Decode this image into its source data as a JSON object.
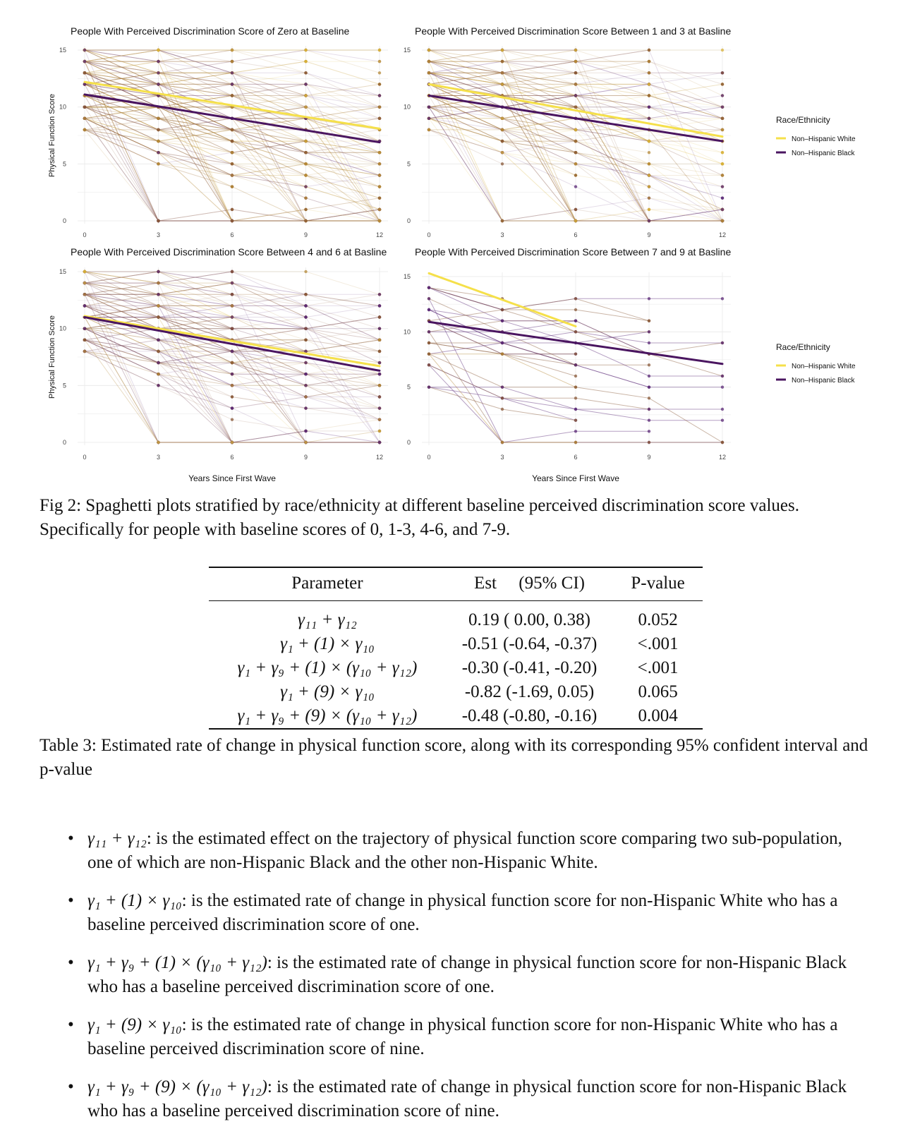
{
  "figure": {
    "legend_title": "Race/Ethnicity",
    "legend_items": [
      {
        "label": "Non–Hispanic White",
        "color": "#f5e04a"
      },
      {
        "label": "Non–Hispanic Black",
        "color": "#4a1560"
      }
    ],
    "ylabel": "Physical Function Score",
    "xlabel": "Years Since First Wave",
    "yticks": [
      "0",
      "5",
      "10",
      "15"
    ],
    "xticks": [
      "0",
      "3",
      "6",
      "9",
      "12"
    ]
  },
  "chart_data": [
    {
      "type": "line",
      "title": "People With Perceived Discrimination Score of Zero at Baseline",
      "xlabel": "",
      "ylabel": "Physical Function Score",
      "x": [
        0,
        3,
        6,
        9,
        12
      ],
      "xlim": [
        0,
        12
      ],
      "ylim": [
        0,
        15
      ],
      "series": [
        {
          "name": "Non–Hispanic White",
          "x": [
            0,
            12
          ],
          "values": [
            12.2,
            8.1
          ]
        },
        {
          "name": "Non–Hispanic Black",
          "x": [
            0,
            12
          ],
          "values": [
            11.1,
            6.9
          ]
        }
      ]
    },
    {
      "type": "line",
      "title": "People With Perceived Discrimination Score Between 1 and 3 at Basline",
      "xlabel": "",
      "ylabel": "",
      "x": [
        0,
        3,
        6,
        9,
        12
      ],
      "xlim": [
        0,
        12
      ],
      "ylim": [
        0,
        15
      ],
      "series": [
        {
          "name": "Non–Hispanic White",
          "x": [
            0,
            12
          ],
          "values": [
            12.0,
            7.4
          ]
        },
        {
          "name": "Non–Hispanic Black",
          "x": [
            0,
            12
          ],
          "values": [
            11.0,
            7.0
          ]
        }
      ]
    },
    {
      "type": "line",
      "title": "People With Perceived Discrimination Score Between 4 and 6 at Basline",
      "xlabel": "Years Since First Wave",
      "ylabel": "Physical Function Score",
      "x": [
        0,
        3,
        6,
        9,
        12
      ],
      "xlim": [
        0,
        12
      ],
      "ylim": [
        0,
        15
      ],
      "series": [
        {
          "name": "Non–Hispanic White",
          "x": [
            0,
            12
          ],
          "values": [
            11.1,
            6.7
          ]
        },
        {
          "name": "Non–Hispanic Black",
          "x": [
            0,
            12
          ],
          "values": [
            11.0,
            6.3
          ]
        }
      ]
    },
    {
      "type": "line",
      "title": "People With Perceived Discrimination Score Between 7 and 9 at Basline",
      "xlabel": "Years Since First Wave",
      "ylabel": "",
      "x": [
        0,
        3,
        6,
        9,
        12
      ],
      "xlim": [
        0,
        12
      ],
      "ylim": [
        0,
        15
      ],
      "series": [
        {
          "name": "Non–Hispanic White",
          "x": [
            0,
            6
          ],
          "values": [
            15.3,
            10.5
          ]
        },
        {
          "name": "Non–Hispanic Black",
          "x": [
            0,
            12
          ],
          "values": [
            10.9,
            7.1
          ]
        }
      ]
    }
  ],
  "fig_caption": "Fig 2: Spaghetti plots stratified by race/ethnicity at different baseline perceived discrimination score values. Specifically for people with baseline scores of 0, 1-3, 4-6, and 7-9.",
  "table": {
    "headers": {
      "parameter": "Parameter",
      "est": "Est     (95% CI)",
      "p": "P-value"
    },
    "rows": [
      {
        "param": "γ₁₁ + γ₁₂",
        "est": "0.19 ( 0.00, 0.38)",
        "p": "0.052"
      },
      {
        "param": "γ₁ + (1) × γ₁₀",
        "est": "-0.51 (-0.64, -0.37)",
        "p": "<.001"
      },
      {
        "param": "γ₁ + γ₉ + (1) × (γ₁₀ + γ₁₂)",
        "est": "-0.30 (-0.41, -0.20)",
        "p": "<.001"
      },
      {
        "param": "γ₁ + (9) × γ₁₀",
        "est": "-0.82 (-1.69, 0.05)",
        "p": "0.065"
      },
      {
        "param": "γ₁ + γ₉ + (9) × (γ₁₀ + γ₁₂)",
        "est": "-0.48 (-0.80, -0.16)",
        "p": "0.004"
      }
    ]
  },
  "table_caption": "Table 3: Estimated rate of change in physical function score, along with its corresponding 95% confident interval and p-value",
  "notes": [
    {
      "expr": "γ₁₁ + γ₁₂",
      "text": ": is the estimated effect on the trajectory of physical function score comparing two sub-population, one of which are non-Hispanic Black and the other non-Hispanic White."
    },
    {
      "expr": "γ₁ + (1) × γ₁₀",
      "text": ": is the estimated rate of change in physical function score for non-Hispanic White who has a baseline perceived discrimination score of one."
    },
    {
      "expr": "γ₁ + γ₉ + (1) × (γ₁₀ + γ₁₂)",
      "text": ": is the estimated rate of change in physical function score for non-Hispanic Black who has a baseline perceived discrimination score of one."
    },
    {
      "expr": "γ₁ + (9) × γ₁₀",
      "text": ": is the estimated rate of change in physical function score for non-Hispanic White who has a baseline perceived discrimination score of nine."
    },
    {
      "expr": "γ₁ + γ₉ + (9) × (γ₁₀ + γ₁₂)",
      "text": ": is the estimated rate of change in physical function score for non-Hispanic Black who has a baseline perceived discrimination score of nine."
    }
  ]
}
